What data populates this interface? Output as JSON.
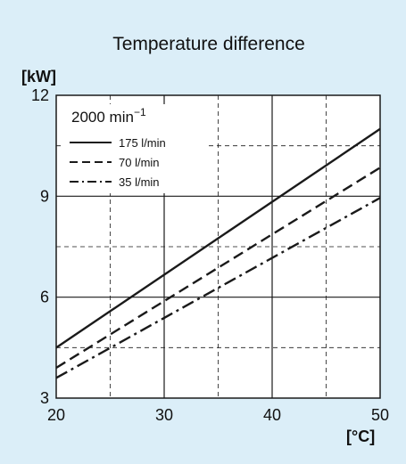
{
  "colors": {
    "background": "#dbeef8",
    "plot_background": "#ffffff",
    "line": "#1a1a1a"
  },
  "chart_data": {
    "type": "line",
    "title": "Temperature difference",
    "ylabel": "[kW]",
    "xlabel": "[°C]",
    "xlim": [
      20,
      50
    ],
    "ylim": [
      3,
      12
    ],
    "xticks": [
      20,
      30,
      40,
      50
    ],
    "yticks": [
      3,
      6,
      9,
      12
    ],
    "grid_major": true,
    "grid_minor_dashed": true,
    "legend": {
      "placement": "top-left",
      "title_main": "2000 min",
      "title_sup": "−1"
    },
    "series": [
      {
        "name": "175 l/min",
        "style": "solid",
        "x": [
          20,
          50
        ],
        "y": [
          4.5,
          11.0
        ]
      },
      {
        "name": "70 l/min",
        "style": "dashed",
        "x": [
          20,
          50
        ],
        "y": [
          3.9,
          9.85
        ]
      },
      {
        "name": "35 l/min",
        "style": "dashdot",
        "x": [
          20,
          50
        ],
        "y": [
          3.6,
          8.95
        ]
      }
    ]
  }
}
